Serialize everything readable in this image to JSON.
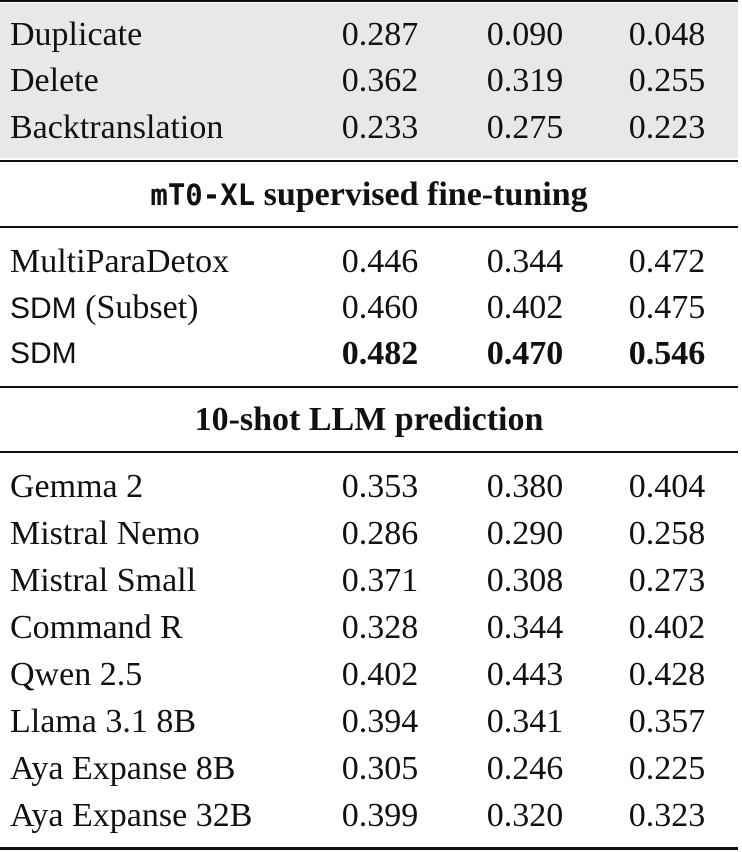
{
  "augmentation_rows": [
    {
      "label": "Duplicate",
      "values": [
        "0.287",
        "0.090",
        "0.048"
      ]
    },
    {
      "label": "Delete",
      "values": [
        "0.362",
        "0.319",
        "0.255"
      ]
    },
    {
      "label": "Backtranslation",
      "values": [
        "0.233",
        "0.275",
        "0.223"
      ]
    }
  ],
  "section_finetune": {
    "model": "mT0-XL",
    "suffix": " supervised fine-tuning"
  },
  "finetune_rows": [
    {
      "label": "MultiParaDetox",
      "values": [
        "0.446",
        "0.344",
        "0.472"
      ]
    },
    {
      "label_sans": "SDM",
      "label_rest": " (Subset)",
      "values": [
        "0.460",
        "0.402",
        "0.475"
      ]
    },
    {
      "label_sans": "SDM",
      "values": [
        "0.482",
        "0.470",
        "0.546"
      ],
      "bold": true
    }
  ],
  "section_llm": {
    "title": "10-shot LLM prediction"
  },
  "llm_rows": [
    {
      "label": "Gemma 2",
      "values": [
        "0.353",
        "0.380",
        "0.404"
      ]
    },
    {
      "label": "Mistral Nemo",
      "values": [
        "0.286",
        "0.290",
        "0.258"
      ]
    },
    {
      "label": "Mistral Small",
      "values": [
        "0.371",
        "0.308",
        "0.273"
      ]
    },
    {
      "label": "Command R",
      "values": [
        "0.328",
        "0.344",
        "0.402"
      ]
    },
    {
      "label": "Qwen 2.5",
      "values": [
        "0.402",
        "0.443",
        "0.428"
      ]
    },
    {
      "label": "Llama 3.1 8B",
      "values": [
        "0.394",
        "0.341",
        "0.357"
      ]
    },
    {
      "label": "Aya Expanse 8B",
      "values": [
        "0.305",
        "0.246",
        "0.225"
      ]
    },
    {
      "label": "Aya Expanse 32B",
      "values": [
        "0.399",
        "0.320",
        "0.323"
      ]
    }
  ]
}
